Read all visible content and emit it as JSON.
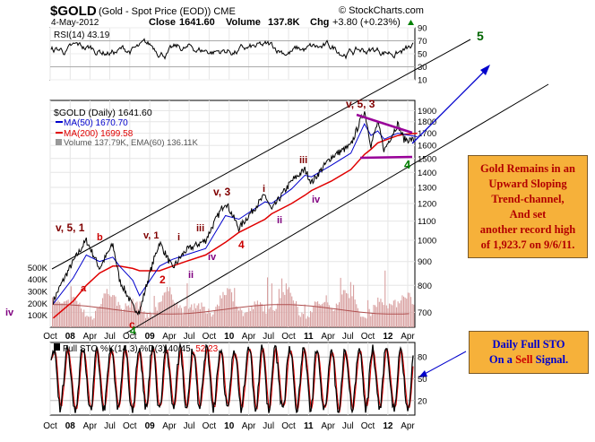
{
  "header": {
    "symbol": "$GOLD",
    "name": "(Gold - Spot Price (EOD)) CME",
    "watermark": "© StockCharts.com",
    "date": "4-May-2012",
    "close_label": "Close",
    "close": "1641.60",
    "volume_label": "Volume",
    "volume": "137.8K",
    "chg_label": "Chg",
    "chg": "+3.80 (+0.23%)",
    "chg_arrow": "triangle-up-icon"
  },
  "rsi_panel": {
    "legend": "RSI(14) 43.19",
    "ticks": [
      "90",
      "70",
      "50",
      "30",
      "10"
    ]
  },
  "price_panel": {
    "legend_title": "$GOLD (Daily) 1641.60",
    "ma50": "MA(50) 1670.70",
    "ma200": "MA(200) 1699.58",
    "volume_legend": "Volume 137.79K, EMA(60) 136.11K",
    "ticks": [
      "1900",
      "1800",
      "1700",
      "1600",
      "1500",
      "1400",
      "1300",
      "1200",
      "1100",
      "1000",
      "900",
      "800",
      "700"
    ],
    "volume_ticks": [
      "500K",
      "400K",
      "300K",
      "200K",
      "100K"
    ]
  },
  "sto_panel": {
    "legend_prefix": "Full STO %K(14,3) %D(3) 40.45,",
    "legend_value2": "52.23",
    "ticks": [
      "80",
      "50",
      "20"
    ]
  },
  "x_axis": {
    "labels": [
      "Oct",
      "08",
      "Apr",
      "Jul",
      "Oct",
      "09",
      "Apr",
      "Jul",
      "Oct",
      "10",
      "Apr",
      "Jul",
      "Oct",
      "11",
      "Apr",
      "Jul",
      "Oct",
      "12",
      "Apr"
    ]
  },
  "annotations": [
    {
      "text": "v, 5, 1",
      "color": "#800000"
    },
    {
      "text": "b",
      "color": "#cc0000"
    },
    {
      "text": "a",
      "color": "#cc0000"
    },
    {
      "text": "c",
      "color": "#cc0000"
    },
    {
      "text": "iv",
      "color": "#800080"
    },
    {
      "text": "v, 1",
      "color": "#800000"
    },
    {
      "text": "i",
      "color": "#800000"
    },
    {
      "text": "iii",
      "color": "#800000"
    },
    {
      "text": "iv",
      "color": "#800080"
    },
    {
      "text": "ii",
      "color": "#800080"
    },
    {
      "text": "2",
      "color": "#cc0000"
    },
    {
      "text": "v, 3",
      "color": "#800000"
    },
    {
      "text": "i",
      "color": "#800000"
    },
    {
      "text": "ii",
      "color": "#800080"
    },
    {
      "text": "4",
      "color": "#cc0000"
    },
    {
      "text": "iii",
      "color": "#800000"
    },
    {
      "text": "iv",
      "color": "#800080"
    },
    {
      "text": "v, 5, 3",
      "color": "#800000"
    },
    {
      "text": "4",
      "color": "#008000"
    },
    {
      "text": "4",
      "color": "#008000"
    },
    {
      "text": "5",
      "color": "#006400"
    }
  ],
  "notes": {
    "gold_lines": [
      "Gold Remains in an",
      "Upward Sloping",
      "Trend-channel,",
      "And set",
      "another record high",
      "of 1,923.7 on 9/6/11."
    ],
    "sto_line1": "Daily Full STO",
    "sto_line2_prefix": "On a",
    "sto_line2_sell": "Sell",
    "sto_line2_suffix": "Signal."
  },
  "colors": {
    "price": "#000000",
    "ma50": "#0000cc",
    "ma200": "#e00000",
    "volume": "#d8a0a0",
    "trendline": "#000000",
    "triangle": "#990099",
    "arrow": "#0000cc",
    "note_bg": "#f6b13a"
  },
  "chart_data": [
    {
      "type": "line",
      "panel": "RSI(14)",
      "ylim": [
        10,
        90
      ],
      "last_value": 43.19,
      "reference_lines": [
        30,
        70
      ]
    },
    {
      "type": "line",
      "panel": "$GOLD (Daily)",
      "x": [
        "2007-10",
        "2008-01",
        "2008-03",
        "2008-05",
        "2008-07",
        "2008-08",
        "2008-10",
        "2008-11",
        "2009-02",
        "2009-04",
        "2009-06",
        "2009-09",
        "2009-12",
        "2010-02",
        "2010-06",
        "2010-07",
        "2010-10",
        "2010-12",
        "2011-01",
        "2011-04",
        "2011-07",
        "2011-09",
        "2011-10",
        "2011-11",
        "2011-12",
        "2012-02",
        "2012-03",
        "2012-05"
      ],
      "series": [
        {
          "name": "$GOLD",
          "values": [
            740,
            900,
            1000,
            870,
            980,
            820,
            720,
            700,
            990,
            870,
            950,
            1000,
            1210,
            1060,
            1250,
            1160,
            1340,
            1420,
            1330,
            1510,
            1600,
            1900,
            1600,
            1790,
            1560,
            1780,
            1650,
            1641.6
          ]
        },
        {
          "name": "MA(50)",
          "values": [
            730,
            830,
            930,
            900,
            920,
            880,
            820,
            760,
            880,
            910,
            930,
            960,
            1130,
            1110,
            1210,
            1200,
            1290,
            1380,
            1370,
            1450,
            1540,
            1780,
            1680,
            1720,
            1650,
            1700,
            1690,
            1670.7
          ]
        },
        {
          "name": "MA(200)",
          "values": [
            680,
            740,
            800,
            850,
            880,
            880,
            870,
            860,
            860,
            880,
            900,
            930,
            990,
            1040,
            1110,
            1140,
            1200,
            1250,
            1280,
            1340,
            1420,
            1530,
            1570,
            1620,
            1640,
            1680,
            1690,
            1699.58
          ]
        }
      ],
      "ylim": [
        650,
        2000
      ],
      "y_scale": "log"
    },
    {
      "type": "bar",
      "panel": "Volume",
      "ylim": [
        0,
        600000
      ],
      "last_value": 137790,
      "ema60": 136110
    },
    {
      "type": "line",
      "panel": "Full STO %K(14,3) %D(3)",
      "ylim": [
        0,
        100
      ],
      "series": [
        {
          "name": "%K",
          "last_value": 40.45
        },
        {
          "name": "%D",
          "last_value": 52.23
        }
      ],
      "reference_lines": [
        20,
        50,
        80
      ]
    }
  ]
}
